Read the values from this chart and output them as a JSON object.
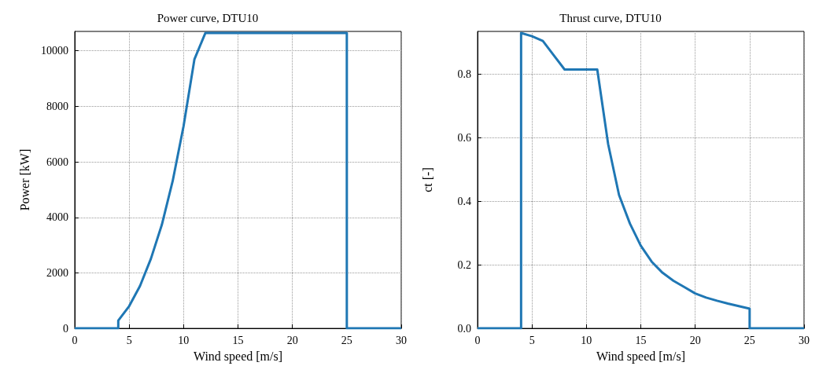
{
  "chart_data": [
    {
      "type": "line",
      "title": "Power curve, DTU10",
      "xlabel": "Wind speed [m/s]",
      "ylabel": "Power [kW]",
      "series": [
        {
          "color": "#1f77b4",
          "x": [
            0,
            4,
            4,
            5,
            6,
            7,
            8,
            9,
            10,
            11,
            12,
            13,
            14,
            15,
            16,
            17,
            18,
            19,
            20,
            21,
            22,
            23,
            24,
            25,
            25,
            30
          ],
          "values": [
            0,
            0,
            280,
            800,
            1530,
            2510,
            3730,
            5310,
            7290,
            9700,
            10640,
            10640,
            10640,
            10640,
            10640,
            10640,
            10640,
            10640,
            10640,
            10640,
            10640,
            10640,
            10640,
            10640,
            0,
            0
          ]
        }
      ],
      "xlim": [
        0,
        30
      ],
      "xticks": [
        0,
        5,
        10,
        15,
        20,
        25,
        30
      ],
      "ylim": [
        0,
        10700
      ],
      "yticks": [
        0,
        2000,
        4000,
        6000,
        8000,
        10000
      ],
      "grid": true,
      "line_style": "solid"
    },
    {
      "type": "line",
      "title": "Thrust curve, DTU10",
      "xlabel": "Wind speed [m/s]",
      "ylabel": "ct [-]",
      "series": [
        {
          "color": "#1f77b4",
          "x": [
            0,
            4,
            4,
            5,
            6,
            7,
            8,
            9,
            10,
            11,
            12,
            13,
            14,
            15,
            16,
            17,
            18,
            19,
            20,
            21,
            22,
            23,
            24,
            25,
            25,
            30
          ],
          "values": [
            0,
            0,
            0.93,
            0.92,
            0.905,
            0.86,
            0.815,
            0.815,
            0.815,
            0.815,
            0.58,
            0.42,
            0.33,
            0.26,
            0.21,
            0.175,
            0.15,
            0.13,
            0.11,
            0.097,
            0.087,
            0.078,
            0.07,
            0.062,
            0,
            0
          ]
        }
      ],
      "xlim": [
        0,
        30
      ],
      "xticks": [
        0,
        5,
        10,
        15,
        20,
        25,
        30
      ],
      "ylim": [
        0,
        0.935
      ],
      "yticks": [
        {
          "value": 0,
          "label": "0.0"
        },
        0.2,
        0.4,
        0.6,
        0.8
      ],
      "grid": true,
      "line_style": "solid"
    }
  ]
}
